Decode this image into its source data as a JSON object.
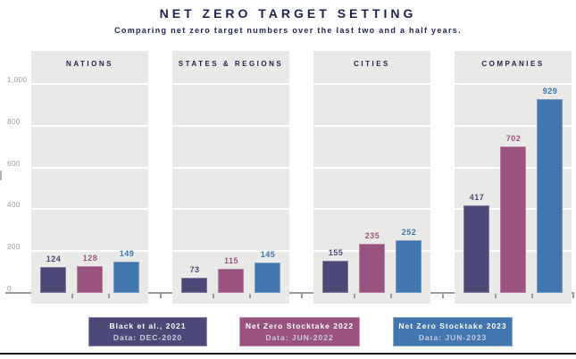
{
  "title": "NET ZERO TARGET SETTING",
  "subtitle": "Comparing net zero target numbers over the last two and a half years.",
  "colors": {
    "heading": "#1d2250",
    "panel_background": "#e9eae7",
    "gridline": "#ffffff",
    "axis": "#9a9a9a",
    "y_labels": "#9b9b9b",
    "legend_subtext": "#cbcedd",
    "bottom_rule": "#121212"
  },
  "chart_data": {
    "type": "bar",
    "title": "NET ZERO TARGET SETTING",
    "subtitle": "Comparing net zero target numbers over the last two and a half years.",
    "categories": [
      "NATIONS",
      "STATES & REGIONS",
      "CITIES",
      "COMPANIES"
    ],
    "series": [
      {
        "name": "Black et al., 2021",
        "data_note": "Data: DEC-2020",
        "color": "#4c4979",
        "values": [
          124,
          73,
          155,
          417
        ]
      },
      {
        "name": "Net Zero Stocktake 2022",
        "data_note": "Data: JUN-2022",
        "color": "#9a5280",
        "values": [
          128,
          115,
          235,
          702
        ]
      },
      {
        "name": "Net Zero Stocktake 2023",
        "data_note": "Data: JUN-2023",
        "color": "#4176af",
        "values": [
          149,
          145,
          252,
          929
        ]
      }
    ],
    "ylim": [
      0,
      1000
    ],
    "yticks": [
      {
        "value": 0,
        "label": "0"
      },
      {
        "value": 200,
        "label": "200"
      },
      {
        "value": 400,
        "label": "400"
      },
      {
        "value": 600,
        "label": "600"
      },
      {
        "value": 800,
        "label": "800"
      },
      {
        "value": 1000,
        "label": "1,000"
      }
    ],
    "grid": true,
    "legend_position": "bottom",
    "value_labels": true
  }
}
